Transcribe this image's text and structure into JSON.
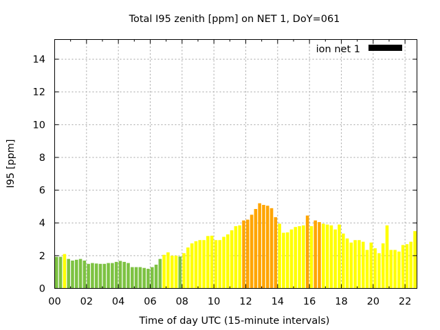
{
  "chart_data": {
    "type": "bar",
    "title": "Total I95 zenith [ppm] on NET 1, DoY=061",
    "xlabel": "Time of day UTC (15-minute intervals)",
    "ylabel": "I95 [ppm]",
    "xlim": [
      0,
      22.75
    ],
    "ylim": [
      0,
      15.2
    ],
    "grid": true,
    "legend": {
      "position": "top-right",
      "entries": [
        {
          "label": "ion net 1",
          "color": "#000000"
        }
      ]
    },
    "x_ticks": [
      {
        "value": 0,
        "label": "00"
      },
      {
        "value": 2,
        "label": "02"
      },
      {
        "value": 4,
        "label": "04"
      },
      {
        "value": 6,
        "label": "06"
      },
      {
        "value": 8,
        "label": "08"
      },
      {
        "value": 10,
        "label": "10"
      },
      {
        "value": 12,
        "label": "12"
      },
      {
        "value": 14,
        "label": "14"
      },
      {
        "value": 16,
        "label": "16"
      },
      {
        "value": 18,
        "label": "18"
      },
      {
        "value": 20,
        "label": "20"
      },
      {
        "value": 22,
        "label": "22"
      }
    ],
    "y_ticks": [
      {
        "value": 0,
        "label": "0"
      },
      {
        "value": 2,
        "label": "2"
      },
      {
        "value": 4,
        "label": "4"
      },
      {
        "value": 6,
        "label": "6"
      },
      {
        "value": 8,
        "label": "8"
      },
      {
        "value": 10,
        "label": "10"
      },
      {
        "value": 12,
        "label": "12"
      },
      {
        "value": 14,
        "label": "14"
      }
    ],
    "interval_hours": 0.25,
    "color_classes": {
      "g": "#7dc242",
      "y": "#ffff00",
      "o": "#ffa500"
    },
    "values": [
      1.93,
      1.93,
      2.1,
      1.8,
      1.7,
      1.75,
      1.8,
      1.7,
      1.5,
      1.55,
      1.52,
      1.5,
      1.5,
      1.55,
      1.55,
      1.62,
      1.68,
      1.62,
      1.55,
      1.3,
      1.3,
      1.3,
      1.25,
      1.2,
      1.3,
      1.45,
      1.8,
      2.05,
      2.2,
      2.0,
      2.0,
      1.95,
      2.15,
      2.5,
      2.75,
      2.88,
      2.95,
      2.95,
      3.2,
      3.22,
      2.95,
      2.95,
      3.15,
      3.3,
      3.55,
      3.8,
      3.85,
      4.15,
      4.2,
      4.5,
      4.85,
      5.2,
      5.1,
      5.05,
      4.9,
      4.35,
      3.95,
      3.4,
      3.42,
      3.6,
      3.75,
      3.8,
      3.85,
      4.45,
      3.8,
      4.15,
      4.05,
      3.95,
      3.9,
      3.85,
      3.6,
      3.9,
      3.35,
      3.05,
      2.8,
      2.95,
      2.95,
      2.85,
      2.35,
      2.8,
      2.45,
      2.15,
      2.75,
      3.85,
      2.35,
      2.35,
      2.25,
      2.65,
      2.7,
      2.85,
      3.5
    ],
    "colors": [
      "g",
      "g",
      "y",
      "g",
      "g",
      "g",
      "g",
      "g",
      "g",
      "g",
      "g",
      "g",
      "g",
      "g",
      "g",
      "g",
      "g",
      "g",
      "g",
      "g",
      "g",
      "g",
      "g",
      "g",
      "g",
      "g",
      "g",
      "y",
      "y",
      "y",
      "y",
      "g",
      "y",
      "y",
      "y",
      "y",
      "y",
      "y",
      "y",
      "y",
      "y",
      "y",
      "y",
      "y",
      "y",
      "y",
      "y",
      "o",
      "o",
      "o",
      "o",
      "o",
      "o",
      "o",
      "o",
      "o",
      "y",
      "y",
      "y",
      "y",
      "y",
      "y",
      "y",
      "o",
      "y",
      "o",
      "o",
      "y",
      "y",
      "y",
      "y",
      "y",
      "y",
      "y",
      "y",
      "y",
      "y",
      "y",
      "y",
      "y",
      "y",
      "y",
      "y",
      "y",
      "y",
      "y",
      "y",
      "y",
      "y",
      "y",
      "y"
    ]
  }
}
